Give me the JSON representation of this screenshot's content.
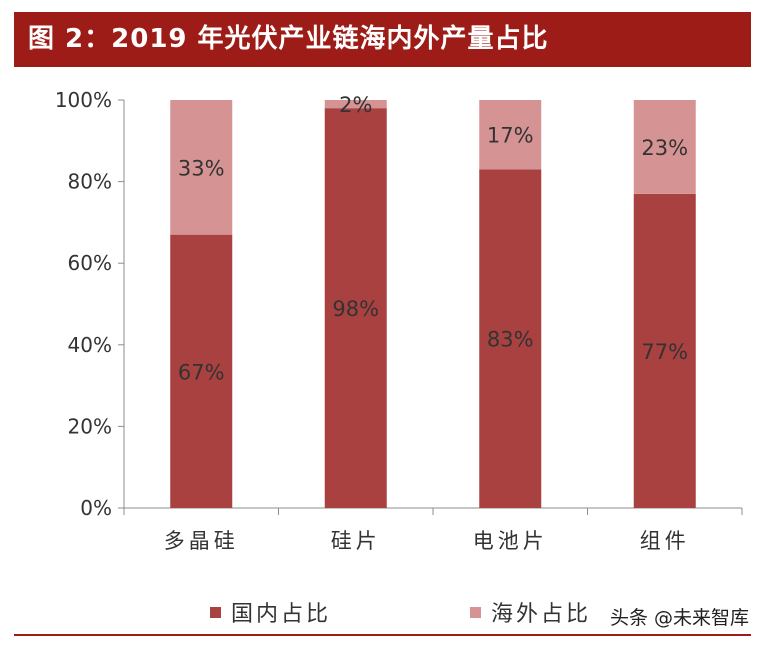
{
  "title": "图 2：2019 年光伏产业链海内外产量占比",
  "watermark": "头条 @未来智库",
  "chart_data": {
    "type": "bar",
    "stacked": true,
    "categories": [
      "多晶硅",
      "硅片",
      "电池片",
      "组件"
    ],
    "series": [
      {
        "name": "国内占比",
        "values": [
          67,
          98,
          83,
          77
        ],
        "labels": [
          "67%",
          "98%",
          "83%",
          "77%"
        ],
        "color": "#a8413f"
      },
      {
        "name": "海外占比",
        "values": [
          33,
          2,
          17,
          23
        ],
        "labels": [
          "33%",
          "2%",
          "17%",
          "23%"
        ],
        "color": "#d59493"
      }
    ],
    "ylim": [
      0,
      100
    ],
    "yticks": [
      "0%",
      "20%",
      "40%",
      "60%",
      "80%",
      "100%"
    ],
    "legend_position": "bottom",
    "grid": false
  }
}
